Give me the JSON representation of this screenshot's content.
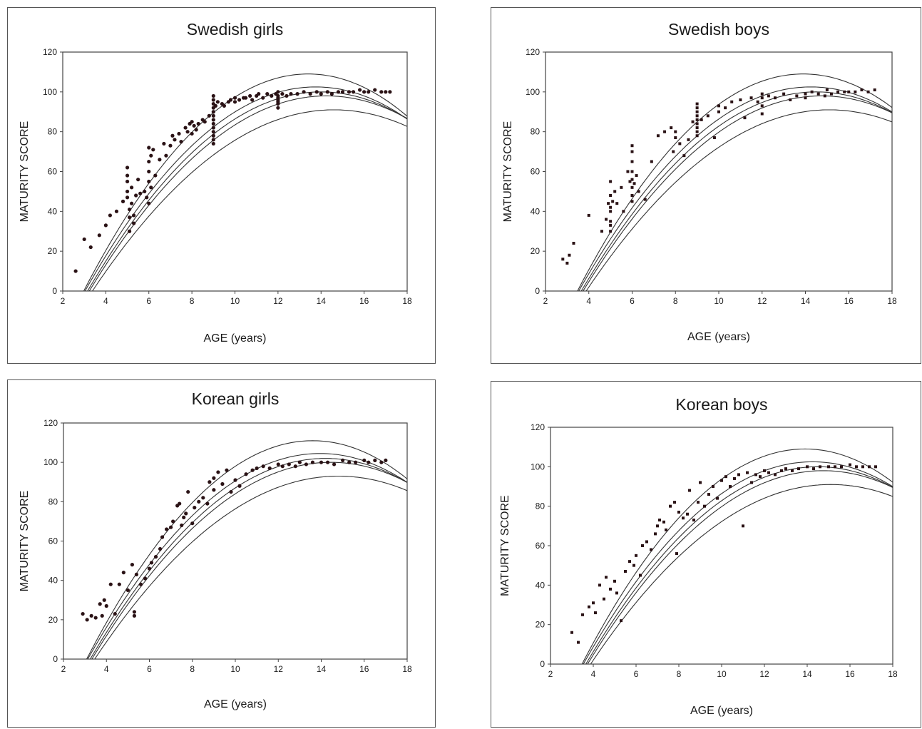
{
  "chart_data": [
    {
      "type": "scatter",
      "title": "Swedish girls",
      "xlabel": "AGE (years)",
      "ylabel": "MATURITY SCORE",
      "xlim": [
        2,
        18
      ],
      "ylim": [
        0,
        120
      ],
      "xticks": [
        "2",
        "4",
        "6",
        "8",
        "10",
        "12",
        "14",
        "16",
        "18"
      ],
      "yticks": [
        "0",
        "20",
        "40",
        "60",
        "80",
        "100",
        "120"
      ],
      "grid": false,
      "curve_params": {
        "center_age": 14.0,
        "peak": 100
      },
      "series": [
        {
          "x": [
            2.6,
            3.0,
            3.3,
            3.7,
            4.0,
            4.2,
            4.5,
            4.8,
            5.0,
            5.0,
            5.0,
            5.0,
            5.0,
            5.1,
            5.1,
            5.1,
            5.2,
            5.2,
            5.3,
            5.3,
            5.4,
            5.5,
            5.6,
            5.8,
            5.9,
            6.0,
            6.0,
            6.0,
            6.0,
            6.0,
            6.1,
            6.1,
            6.2,
            6.3,
            6.5,
            6.7,
            6.8,
            7.0,
            7.1,
            7.2,
            7.4,
            7.5,
            7.7,
            7.8,
            7.9,
            8.0,
            8.0,
            8.1,
            8.2,
            8.3,
            8.5,
            8.6,
            8.8,
            9.0,
            9.0,
            9.0,
            9.0,
            9.0,
            9.0,
            9.0,
            9.0,
            9.0,
            9.0,
            9.0,
            9.0,
            9.0,
            9.1,
            9.2,
            9.4,
            9.5,
            9.7,
            9.8,
            10.0,
            10.0,
            10.2,
            10.4,
            10.5,
            10.7,
            10.8,
            11.0,
            11.1,
            11.3,
            11.5,
            11.7,
            11.9,
            12.0,
            12.0,
            12.0,
            12.0,
            12.0,
            12.0,
            12.0,
            12.2,
            12.4,
            12.6,
            12.9,
            13.2,
            13.5,
            13.8,
            14.0,
            14.3,
            14.5,
            14.8,
            15.0,
            15.3,
            15.5,
            15.8,
            16.0,
            16.2,
            16.5,
            16.8,
            17.0,
            17.2
          ],
          "y": [
            10,
            26,
            22,
            28,
            33,
            38,
            40,
            45,
            50,
            58,
            62,
            55,
            47,
            41,
            37,
            30,
            52,
            44,
            38,
            34,
            48,
            56,
            49,
            50,
            47,
            60,
            65,
            72,
            55,
            44,
            68,
            52,
            71,
            58,
            66,
            74,
            68,
            73,
            78,
            76,
            79,
            75,
            82,
            80,
            84,
            79,
            85,
            83,
            81,
            84,
            86,
            85,
            88,
            98,
            96,
            94,
            92,
            90,
            88,
            86,
            84,
            82,
            80,
            78,
            76,
            74,
            93,
            95,
            94,
            93,
            95,
            96,
            97,
            95,
            96,
            97,
            97,
            98,
            96,
            98,
            99,
            97,
            99,
            98,
            99,
            100,
            98,
            96,
            94,
            92,
            95,
            97,
            99,
            98,
            99,
            99,
            100,
            99,
            100,
            99,
            100,
            99,
            100,
            100,
            100,
            100,
            101,
            100,
            100,
            101,
            100,
            100,
            100
          ],
          "marker": "circle"
        }
      ]
    },
    {
      "type": "scatter",
      "title": "Swedish boys",
      "xlabel": "AGE (years)",
      "ylabel": "MATURITY SCORE",
      "xlim": [
        2,
        18
      ],
      "ylim": [
        0,
        120
      ],
      "xticks": [
        "2",
        "4",
        "6",
        "8",
        "10",
        "12",
        "14",
        "16",
        "18"
      ],
      "yticks": [
        "0",
        "20",
        "40",
        "60",
        "80",
        "100",
        "120"
      ],
      "grid": false,
      "curve_params": {
        "center_age": 14.5,
        "peak": 100
      },
      "series": [
        {
          "x": [
            2.8,
            3.0,
            3.1,
            3.3,
            4.0,
            4.6,
            4.8,
            4.9,
            5.0,
            5.0,
            5.0,
            5.0,
            5.0,
            5.0,
            5.0,
            5.1,
            5.2,
            5.3,
            5.5,
            5.6,
            5.8,
            5.9,
            6.0,
            6.0,
            6.0,
            6.0,
            6.0,
            6.0,
            6.0,
            6.0,
            6.1,
            6.2,
            6.3,
            6.6,
            6.9,
            7.2,
            7.5,
            7.8,
            7.9,
            8.0,
            8.0,
            8.2,
            8.4,
            8.6,
            8.8,
            9.0,
            9.0,
            9.0,
            9.0,
            9.0,
            9.0,
            9.0,
            9.0,
            9.0,
            9.2,
            9.5,
            9.8,
            10.0,
            10.0,
            10.3,
            10.6,
            11.0,
            11.2,
            11.5,
            11.8,
            12.0,
            12.0,
            12.0,
            12.0,
            12.3,
            12.6,
            13.0,
            13.3,
            13.6,
            14.0,
            14.0,
            14.3,
            14.6,
            14.9,
            15.0,
            15.2,
            15.5,
            15.8,
            16.0,
            16.3,
            16.6,
            16.9,
            17.2
          ],
          "y": [
            16,
            14,
            18,
            24,
            38,
            30,
            36,
            44,
            55,
            48,
            42,
            40,
            35,
            33,
            30,
            45,
            50,
            44,
            52,
            40,
            60,
            55,
            73,
            70,
            65,
            60,
            56,
            52,
            48,
            45,
            54,
            58,
            50,
            46,
            65,
            78,
            80,
            82,
            70,
            77,
            80,
            74,
            68,
            76,
            85,
            94,
            92,
            90,
            88,
            86,
            84,
            82,
            80,
            78,
            86,
            88,
            77,
            90,
            93,
            92,
            95,
            96,
            87,
            97,
            95,
            99,
            97,
            93,
            89,
            98,
            97,
            99,
            96,
            98,
            99,
            97,
            100,
            99,
            98,
            101,
            99,
            100,
            100,
            100,
            100,
            101,
            100,
            101
          ],
          "marker": "square"
        }
      ]
    },
    {
      "type": "scatter",
      "title": "Korean girls",
      "xlabel": "AGE (years)",
      "ylabel": "MATURITY SCORE",
      "xlim": [
        2,
        18
      ],
      "ylim": [
        0,
        120
      ],
      "xticks": [
        "2",
        "4",
        "6",
        "8",
        "10",
        "12",
        "14",
        "16",
        "18"
      ],
      "yticks": [
        "0",
        "20",
        "40",
        "60",
        "80",
        "100",
        "120"
      ],
      "grid": false,
      "curve_params": {
        "center_age": 14.2,
        "peak": 102
      },
      "series": [
        {
          "x": [
            2.9,
            3.1,
            3.3,
            3.5,
            3.7,
            3.8,
            3.9,
            4.0,
            4.2,
            4.4,
            4.6,
            4.8,
            5.0,
            5.2,
            5.3,
            5.3,
            5.4,
            5.6,
            5.8,
            6.0,
            6.1,
            6.3,
            6.5,
            6.6,
            6.8,
            7.0,
            7.1,
            7.3,
            7.4,
            7.5,
            7.6,
            7.7,
            7.8,
            8.0,
            8.1,
            8.3,
            8.5,
            8.7,
            8.8,
            9.0,
            9.0,
            9.2,
            9.4,
            9.6,
            9.8,
            10.0,
            10.2,
            10.5,
            10.8,
            11.0,
            11.3,
            11.6,
            12.0,
            12.2,
            12.5,
            12.8,
            13.0,
            13.3,
            13.6,
            14.0,
            14.3,
            14.6,
            15.0,
            15.3,
            15.6,
            16.0,
            16.2,
            16.5,
            16.8,
            17.0
          ],
          "y": [
            23,
            20,
            22,
            21,
            28,
            22,
            30,
            27,
            38,
            23,
            38,
            44,
            35,
            48,
            24,
            22,
            43,
            38,
            41,
            46,
            49,
            52,
            56,
            62,
            66,
            67,
            70,
            78,
            79,
            68,
            72,
            74,
            85,
            69,
            77,
            80,
            82,
            79,
            90,
            86,
            92,
            95,
            89,
            96,
            85,
            91,
            88,
            94,
            96,
            97,
            98,
            97,
            99,
            98,
            99,
            98,
            100,
            99,
            100,
            100,
            100,
            99,
            101,
            100,
            100,
            101,
            100,
            101,
            100,
            101
          ],
          "marker": "circle"
        }
      ]
    },
    {
      "type": "scatter",
      "title": "Korean boys",
      "xlabel": "AGE (years)",
      "ylabel": "MATURITY SCORE",
      "xlim": [
        2,
        18
      ],
      "ylim": [
        0,
        120
      ],
      "xticks": [
        "2",
        "4",
        "6",
        "8",
        "10",
        "12",
        "14",
        "16",
        "18"
      ],
      "yticks": [
        "0",
        "20",
        "40",
        "60",
        "80",
        "100",
        "120"
      ],
      "grid": false,
      "curve_params": {
        "center_age": 14.5,
        "peak": 100
      },
      "series": [
        {
          "x": [
            3.0,
            3.3,
            3.5,
            3.8,
            4.0,
            4.1,
            4.3,
            4.5,
            4.6,
            4.8,
            5.0,
            5.1,
            5.3,
            5.5,
            5.7,
            5.9,
            6.0,
            6.2,
            6.3,
            6.5,
            6.7,
            6.9,
            7.0,
            7.1,
            7.3,
            7.4,
            7.6,
            7.8,
            7.9,
            8.0,
            8.2,
            8.4,
            8.5,
            8.7,
            8.9,
            9.0,
            9.2,
            9.4,
            9.6,
            9.8,
            10.0,
            10.2,
            10.4,
            10.6,
            10.8,
            11.0,
            11.2,
            11.4,
            11.6,
            11.8,
            12.0,
            12.2,
            12.5,
            12.8,
            13.0,
            13.3,
            13.6,
            14.0,
            14.3,
            14.6,
            15.0,
            15.3,
            15.6,
            16.0,
            16.3,
            16.6,
            16.9,
            17.2
          ],
          "y": [
            16,
            11,
            25,
            29,
            31,
            26,
            40,
            33,
            44,
            38,
            42,
            36,
            22,
            47,
            52,
            50,
            55,
            45,
            60,
            62,
            58,
            66,
            70,
            73,
            72,
            68,
            80,
            82,
            56,
            77,
            74,
            76,
            88,
            73,
            82,
            92,
            80,
            86,
            90,
            84,
            93,
            95,
            90,
            94,
            96,
            70,
            97,
            92,
            96,
            95,
            98,
            97,
            96,
            98,
            99,
            98,
            99,
            100,
            99,
            100,
            100,
            100,
            100,
            101,
            100,
            100,
            100,
            100
          ],
          "marker": "square"
        }
      ]
    }
  ]
}
